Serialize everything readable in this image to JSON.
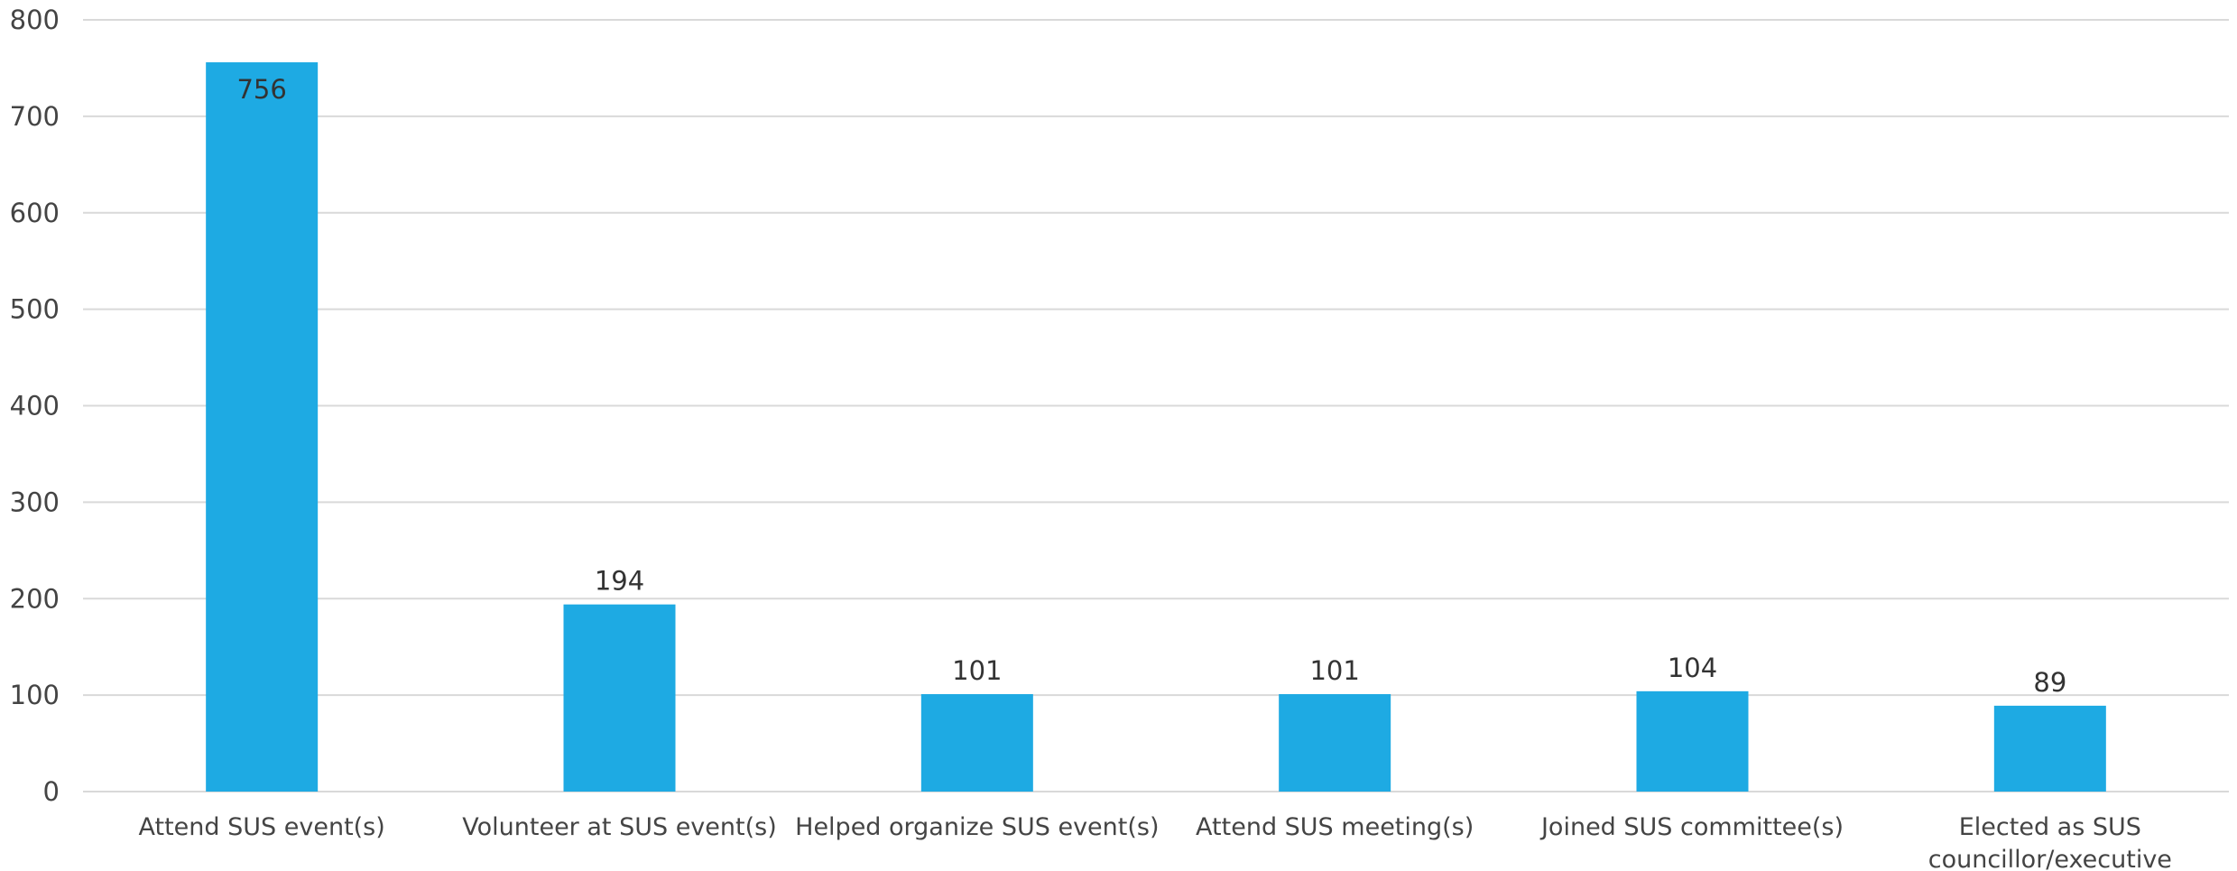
{
  "chart_data": {
    "type": "bar",
    "title": "",
    "xlabel": "",
    "ylabel": "",
    "categories": [
      [
        "Attend SUS event(s)"
      ],
      [
        "Volunteer at SUS event(s)"
      ],
      [
        "Helped organize SUS event(s)"
      ],
      [
        "Attend SUS meeting(s)"
      ],
      [
        "Joined SUS committee(s)"
      ],
      [
        "Elected as SUS",
        "councillor/executive"
      ]
    ],
    "values": [
      756,
      194,
      101,
      101,
      104,
      89
    ],
    "data_labels": [
      "756",
      "194",
      "101",
      "101",
      "104",
      "89"
    ],
    "ylim": [
      0,
      800
    ],
    "yticks": [
      0,
      100,
      200,
      300,
      400,
      500,
      600,
      700,
      800
    ],
    "grid": true,
    "legend": "none",
    "bar_color": "#1eaae3"
  }
}
